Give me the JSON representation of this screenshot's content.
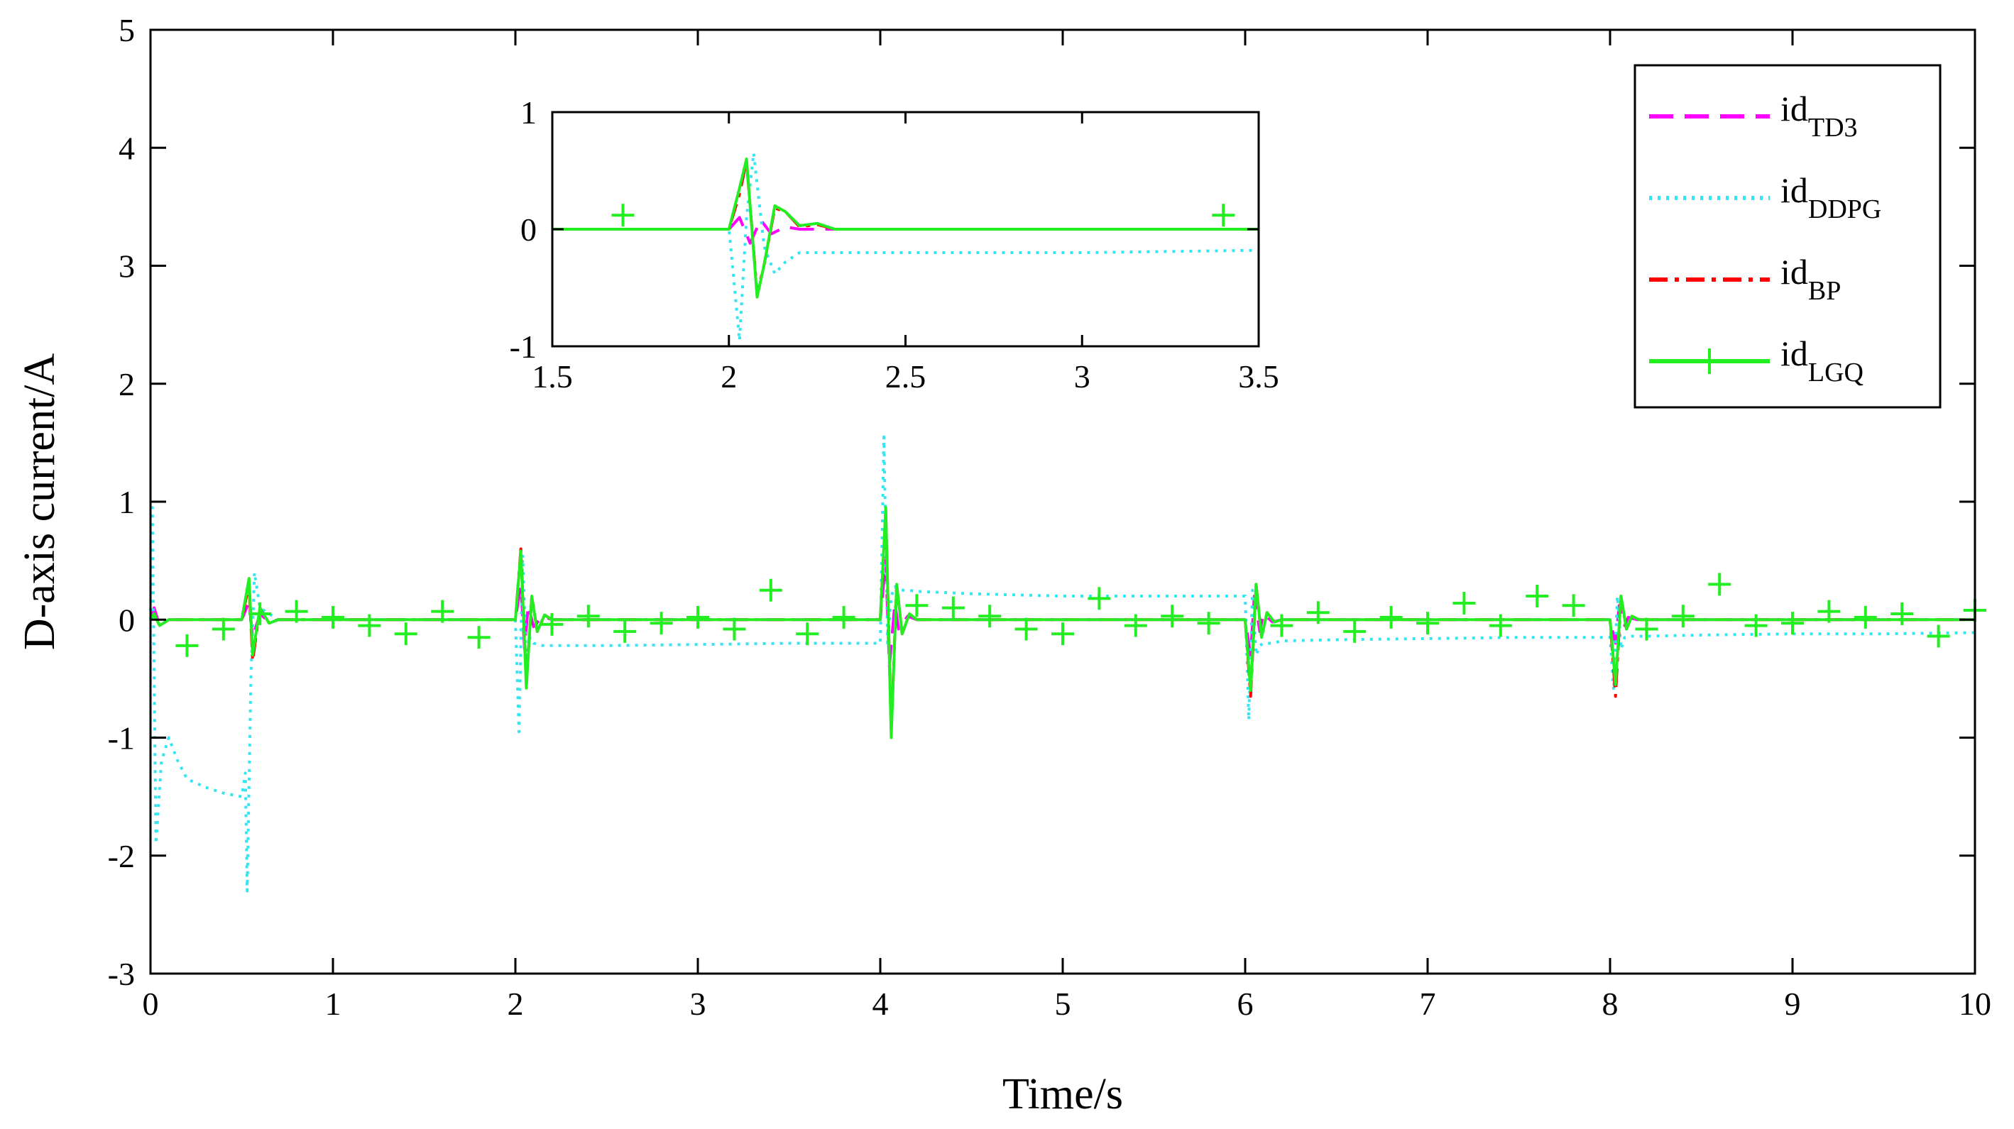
{
  "chart_data": [
    {
      "type": "line",
      "xlabel": "Time/s",
      "ylabel": "D-axis current/A",
      "xlim": [
        0,
        10
      ],
      "ylim": [
        -3,
        5
      ],
      "xticks": [
        0,
        1,
        2,
        3,
        4,
        5,
        6,
        7,
        8,
        9,
        10
      ],
      "yticks": [
        -3,
        -2,
        -1,
        0,
        1,
        2,
        3,
        4,
        5
      ],
      "grid": false,
      "legend_position": "top-right",
      "series": [
        {
          "name": "id_TD3",
          "label_main": "id",
          "label_sub": "TD3",
          "color": "#ff00ff",
          "style": "dashed",
          "x": [
            0,
            0.02,
            0.05,
            0.1,
            0.5,
            0.54,
            0.56,
            0.6,
            0.65,
            0.7,
            1.0,
            1.5,
            2.0,
            2.03,
            2.05,
            2.07,
            2.1,
            2.15,
            2.2,
            2.3,
            3.0,
            4.0,
            4.03,
            4.05,
            4.08,
            4.1,
            4.15,
            4.2,
            4.3,
            5.0,
            6.0,
            6.03,
            6.05,
            6.08,
            6.1,
            6.15,
            6.2,
            6.3,
            7.0,
            8.0,
            8.03,
            8.05,
            8.08,
            8.1,
            8.15,
            8.2,
            9.0,
            10.0
          ],
          "values": [
            0,
            0.1,
            -0.05,
            0,
            0,
            0.15,
            -0.15,
            0.05,
            -0.02,
            0,
            0,
            0,
            0,
            0.3,
            -0.25,
            0.12,
            -0.06,
            0.03,
            0,
            0,
            0,
            0,
            0.5,
            -0.4,
            0.15,
            -0.08,
            0.03,
            0,
            0,
            0,
            0,
            -0.3,
            0.2,
            -0.1,
            0.05,
            -0.02,
            0,
            0,
            0,
            0,
            -0.2,
            0.12,
            -0.05,
            0.02,
            0,
            0,
            0,
            0
          ]
        },
        {
          "name": "id_DDPG",
          "label_main": "id",
          "label_sub": "DDPG",
          "color": "#33e6f2",
          "style": "dotted",
          "x": [
            0,
            0.01,
            0.03,
            0.06,
            0.1,
            0.15,
            0.2,
            0.3,
            0.4,
            0.5,
            0.52,
            0.53,
            0.55,
            0.57,
            0.6,
            0.65,
            0.7,
            1.0,
            1.5,
            2.0,
            2.02,
            2.04,
            2.06,
            2.08,
            2.1,
            2.15,
            2.2,
            2.5,
            3.0,
            3.5,
            4.0,
            4.02,
            4.04,
            4.06,
            4.08,
            4.1,
            4.15,
            4.2,
            4.5,
            5.0,
            5.5,
            6.0,
            6.02,
            6.04,
            6.06,
            6.08,
            6.1,
            6.15,
            6.2,
            6.5,
            7.0,
            7.5,
            8.0,
            8.02,
            8.04,
            8.06,
            8.08,
            8.1,
            8.15,
            8.2,
            8.5,
            9.0,
            9.5,
            10.0
          ],
          "values": [
            0,
            0.95,
            -1.9,
            -1.2,
            -1.0,
            -1.2,
            -1.35,
            -1.42,
            -1.47,
            -1.5,
            -1.3,
            -2.3,
            -0.5,
            0.4,
            0.1,
            0.05,
            0,
            0,
            0,
            0,
            -0.95,
            0.55,
            -0.35,
            -0.15,
            -0.2,
            -0.22,
            -0.22,
            -0.22,
            -0.21,
            -0.2,
            -0.2,
            1.55,
            -0.2,
            0.2,
            0.28,
            0.25,
            0.25,
            0.24,
            0.22,
            0.2,
            0.2,
            0.2,
            -0.85,
            0.25,
            -0.3,
            -0.22,
            -0.2,
            -0.2,
            -0.18,
            -0.17,
            -0.16,
            -0.15,
            -0.15,
            -0.6,
            0.2,
            -0.25,
            -0.15,
            -0.14,
            -0.14,
            -0.14,
            -0.13,
            -0.12,
            -0.12,
            -0.11
          ]
        },
        {
          "name": "id_BP",
          "label_main": "id",
          "label_sub": "BP",
          "color": "#ff0000",
          "style": "dashdot",
          "x": [
            0,
            0.02,
            0.05,
            0.1,
            0.5,
            0.54,
            0.56,
            0.6,
            0.65,
            0.7,
            1.0,
            1.5,
            2.0,
            2.03,
            2.06,
            2.09,
            2.12,
            2.16,
            2.2,
            2.3,
            3.0,
            4.0,
            4.03,
            4.06,
            4.09,
            4.12,
            4.16,
            4.2,
            4.3,
            5.0,
            6.0,
            6.03,
            6.06,
            6.09,
            6.12,
            6.16,
            6.2,
            6.3,
            7.0,
            8.0,
            8.03,
            8.06,
            8.09,
            8.12,
            8.16,
            8.2,
            9.0,
            10.0
          ],
          "values": [
            0,
            0.05,
            -0.05,
            0,
            0,
            0.3,
            -0.35,
            0.1,
            -0.03,
            0,
            0,
            0,
            0,
            0.6,
            -0.55,
            0.2,
            -0.1,
            0.04,
            0,
            0,
            0,
            0,
            0.9,
            -0.95,
            0.3,
            -0.12,
            0.05,
            0,
            0,
            0,
            0,
            -0.65,
            0.3,
            -0.15,
            0.06,
            -0.02,
            0,
            0,
            0,
            0,
            -0.65,
            0.2,
            -0.08,
            0.03,
            0,
            0,
            0,
            0
          ]
        },
        {
          "name": "id_LGQ",
          "label_main": "id",
          "label_sub": "LGQ",
          "color": "#22ee22",
          "style": "solid-plus",
          "x": [
            0,
            0.02,
            0.05,
            0.1,
            0.5,
            0.54,
            0.56,
            0.6,
            0.65,
            0.7,
            1.0,
            1.5,
            2.0,
            2.03,
            2.06,
            2.09,
            2.12,
            2.16,
            2.2,
            2.3,
            3.0,
            4.0,
            4.03,
            4.06,
            4.09,
            4.12,
            4.16,
            4.2,
            4.3,
            5.0,
            6.0,
            6.03,
            6.06,
            6.09,
            6.12,
            6.16,
            6.2,
            6.3,
            7.0,
            8.0,
            8.03,
            8.06,
            8.09,
            8.12,
            8.16,
            8.2,
            9.0,
            10.0
          ],
          "values": [
            0,
            0.05,
            -0.05,
            0,
            0,
            0.35,
            -0.3,
            0.1,
            -0.03,
            0,
            0,
            0,
            0,
            0.58,
            -0.58,
            0.2,
            -0.1,
            0.04,
            0,
            0,
            0,
            0,
            0.95,
            -1.0,
            0.3,
            -0.12,
            0.05,
            0,
            0,
            0,
            0,
            -0.6,
            0.3,
            -0.15,
            0.06,
            -0.02,
            0,
            0,
            0,
            0,
            -0.55,
            0.2,
            -0.08,
            0.03,
            0,
            0,
            0,
            0
          ]
        }
      ],
      "markers_lgq": {
        "x": [
          0.2,
          0.4,
          0.6,
          0.8,
          1.0,
          1.2,
          1.4,
          1.6,
          1.8,
          2.2,
          2.4,
          2.6,
          2.8,
          3.0,
          3.2,
          3.4,
          3.6,
          3.8,
          4.2,
          4.4,
          4.6,
          4.8,
          5.0,
          5.2,
          5.4,
          5.6,
          5.8,
          6.2,
          6.4,
          6.6,
          6.8,
          7.0,
          7.2,
          7.4,
          7.6,
          7.8,
          8.2,
          8.4,
          8.6,
          8.8,
          9.0,
          9.2,
          9.4,
          9.6,
          9.8,
          10.0
        ],
        "values": [
          -0.22,
          -0.08,
          0.05,
          0.07,
          0.02,
          -0.05,
          -0.12,
          0.07,
          -0.15,
          -0.04,
          0.03,
          -0.1,
          -0.03,
          0.02,
          -0.08,
          0.25,
          -0.12,
          0.02,
          0.12,
          0.1,
          0.03,
          -0.08,
          -0.12,
          0.18,
          -0.05,
          0.03,
          -0.03,
          -0.05,
          0.06,
          -0.1,
          0.02,
          -0.03,
          0.14,
          -0.05,
          0.2,
          0.12,
          -0.08,
          0.03,
          0.3,
          -0.05,
          -0.03,
          0.07,
          0.02,
          0.05,
          -0.14,
          0.08
        ]
      }
    },
    {
      "type": "line",
      "inset": true,
      "xlim": [
        1.5,
        3.5
      ],
      "ylim": [
        -1,
        1
      ],
      "xticks": [
        1.5,
        2,
        2.5,
        3,
        3.5
      ],
      "yticks": [
        -1,
        0,
        1
      ],
      "grid": false,
      "series": [
        {
          "name": "id_TD3",
          "color": "#ff00ff",
          "style": "dashed",
          "x": [
            1.5,
            2.0,
            2.03,
            2.06,
            2.09,
            2.12,
            2.16,
            2.2,
            2.3,
            3.5
          ],
          "values": [
            0,
            0,
            0.1,
            -0.12,
            0.08,
            -0.04,
            0.02,
            0,
            0,
            0
          ]
        },
        {
          "name": "id_DDPG",
          "color": "#33e6f2",
          "style": "dotted",
          "x": [
            1.5,
            2.0,
            2.01,
            2.03,
            2.05,
            2.07,
            2.1,
            2.13,
            2.16,
            2.2,
            2.3,
            2.5,
            3.0,
            3.5
          ],
          "values": [
            0,
            0,
            -0.3,
            -0.95,
            0.1,
            0.65,
            -0.15,
            -0.38,
            -0.28,
            -0.2,
            -0.2,
            -0.2,
            -0.2,
            -0.18
          ]
        },
        {
          "name": "id_BP",
          "color": "#ff0000",
          "style": "dashdot",
          "x": [
            1.5,
            2.0,
            2.03,
            2.05,
            2.08,
            2.1,
            2.13,
            2.16,
            2.2,
            2.25,
            2.3,
            3.5
          ],
          "values": [
            0,
            0,
            0.3,
            0.58,
            -0.55,
            -0.3,
            0.18,
            0.15,
            0.02,
            0.04,
            0,
            0
          ]
        },
        {
          "name": "id_LGQ",
          "color": "#22ee22",
          "style": "solid-plus",
          "x": [
            1.5,
            2.0,
            2.03,
            2.05,
            2.08,
            2.1,
            2.13,
            2.16,
            2.2,
            2.25,
            2.3,
            3.5
          ],
          "values": [
            0,
            0,
            0.35,
            0.6,
            -0.58,
            -0.3,
            0.2,
            0.15,
            0.03,
            0.05,
            0,
            0
          ]
        }
      ],
      "markers_lgq": {
        "x": [
          1.7,
          3.4
        ],
        "values": [
          0.12,
          0.12
        ]
      }
    }
  ]
}
